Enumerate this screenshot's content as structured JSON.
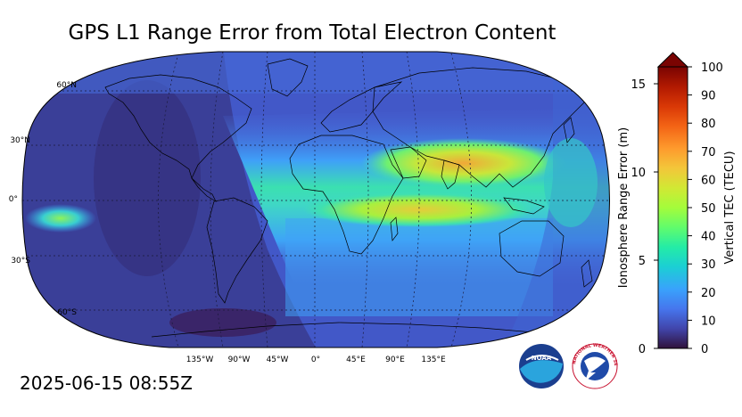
{
  "title": "GPS L1 Range Error from Total Electron Content",
  "timestamp": "2025-06-15 08:55Z",
  "map": {
    "projection": "robinson",
    "lat_labels": [
      "60°N",
      "30°N",
      "0°",
      "30°S",
      "60°S"
    ],
    "lon_labels": [
      "135°W",
      "90°W",
      "45°W",
      "0°",
      "45°E",
      "90°E",
      "135°E"
    ]
  },
  "colorbar": {
    "left_axis_label": "Ionosphere Range Error (m)",
    "left_ticks": [
      "0",
      "5",
      "10",
      "15"
    ],
    "right_axis_label": "Vertical TEC (TECU)",
    "right_ticks": [
      "0",
      "10",
      "20",
      "30",
      "40",
      "50",
      "60",
      "70",
      "80",
      "90",
      "100"
    ],
    "extend": "max",
    "colors": [
      "#30123b",
      "#4145ab",
      "#4675ed",
      "#39a2fc",
      "#1bcfd4",
      "#24eca6",
      "#61fc6c",
      "#a4fc3b",
      "#d1e834",
      "#f3c63a",
      "#fe9b2d",
      "#f36315",
      "#d93806",
      "#b11901",
      "#7a0402"
    ]
  },
  "logos": {
    "noaa": "NOAA",
    "nws": "NATIONAL WEATHER SERVICE"
  }
}
